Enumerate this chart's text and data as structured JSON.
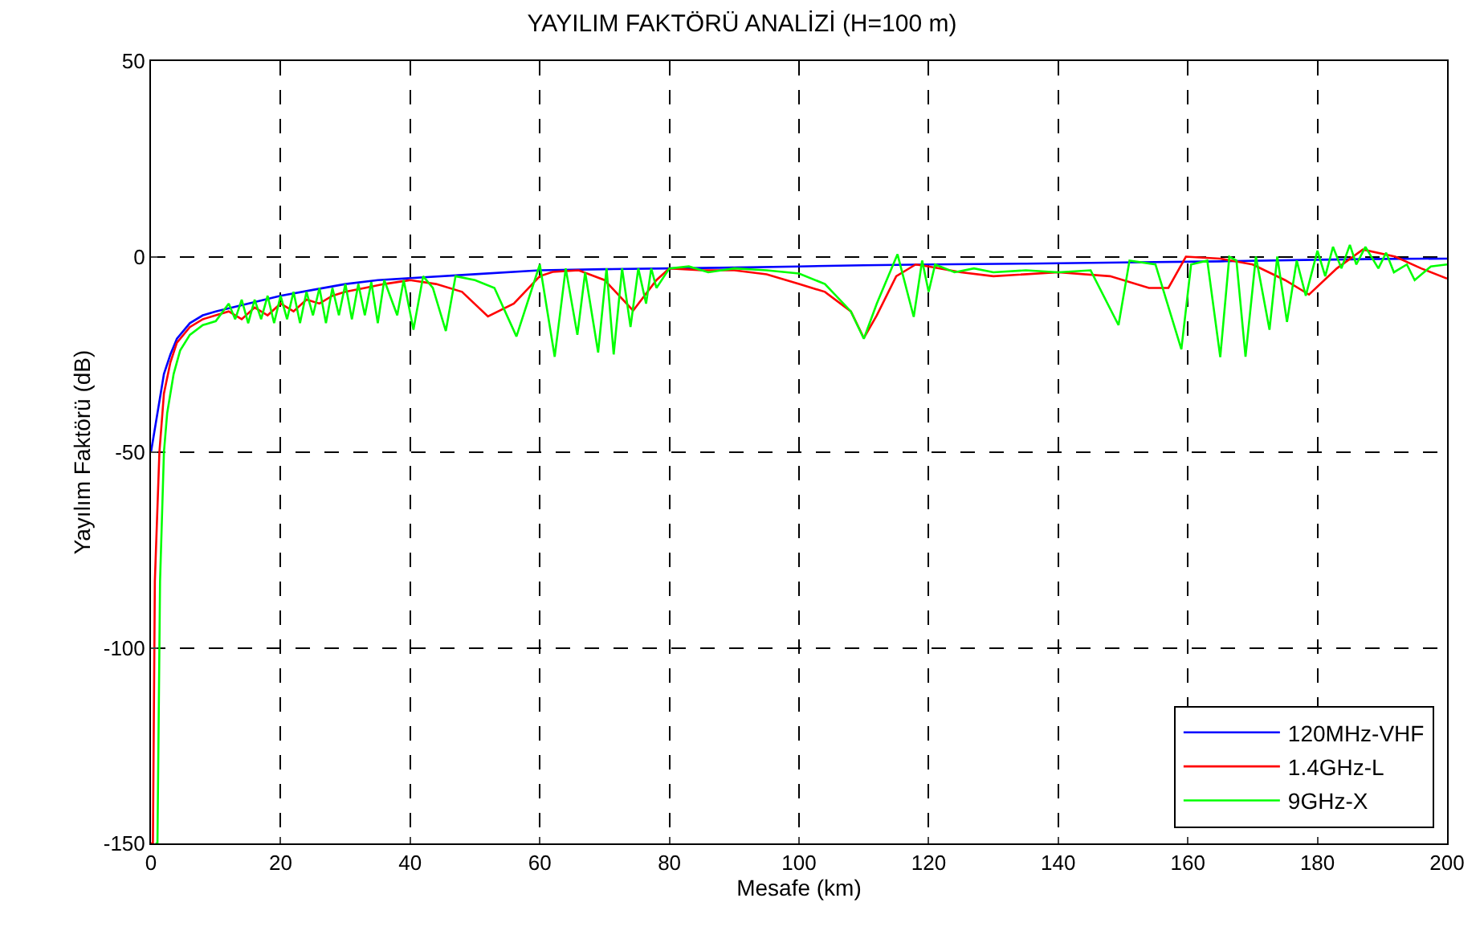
{
  "chart_data": {
    "type": "line",
    "title": "YAYILIM FAKTÖRÜ ANALİZİ (H=100 m)",
    "xlabel": "Mesafe (km)",
    "ylabel": "Yayılım Faktörü (dB)",
    "xlim": [
      0,
      200
    ],
    "ylim": [
      -150,
      50
    ],
    "xticks": [
      0,
      20,
      40,
      60,
      80,
      100,
      120,
      140,
      160,
      180,
      200
    ],
    "yticks": [
      -150,
      -100,
      -50,
      0,
      50
    ],
    "grid": true,
    "legend": "bottom right",
    "line_style": "solid",
    "marker": "none",
    "series": [
      {
        "name": "120MHz-VHF",
        "color": "#0000ff",
        "x": [
          0,
          1,
          2,
          3,
          4,
          6,
          8,
          10,
          15,
          20,
          25,
          30,
          35,
          40,
          50,
          60,
          70,
          80,
          90,
          100,
          110,
          120,
          135,
          150,
          165,
          180,
          190,
          200
        ],
        "values": [
          -50,
          -40,
          -30,
          -25,
          -21,
          -17,
          -15,
          -14,
          -12,
          -10,
          -8.5,
          -7,
          -6,
          -5.5,
          -4.5,
          -3.5,
          -3.2,
          -3,
          -2.8,
          -2.5,
          -2.2,
          -2,
          -1.8,
          -1.5,
          -1.2,
          -0.8,
          -0.6,
          -0.5
        ]
      },
      {
        "name": "1.4GHz-L",
        "color": "#ff0000",
        "x": [
          0,
          0.3,
          0.6,
          1.3,
          2,
          3,
          4,
          6,
          8,
          10,
          12,
          14,
          16,
          18,
          20,
          22,
          24,
          26,
          28,
          30,
          33,
          36,
          40,
          44,
          48,
          52,
          56,
          60,
          62,
          66,
          70,
          74.4,
          78,
          80,
          85,
          90,
          95,
          100,
          104,
          108,
          110,
          112,
          115,
          118,
          120,
          125,
          130,
          140,
          148,
          154,
          157,
          159.7,
          165,
          170,
          175,
          178.7,
          183,
          187,
          192,
          196,
          200
        ],
        "values": [
          -150,
          -150,
          -83,
          -50,
          -35,
          -27,
          -22,
          -18,
          -16,
          -15,
          -14,
          -16,
          -13,
          -15,
          -12,
          -14,
          -11,
          -12,
          -10,
          -9,
          -8,
          -7,
          -6,
          -7,
          -9,
          -15.3,
          -12,
          -5,
          -3.9,
          -3.5,
          -6,
          -13.8,
          -6,
          -3,
          -3.5,
          -3.5,
          -4.5,
          -7,
          -9,
          -14,
          -20.8,
          -15,
          -5,
          -2,
          -2.5,
          -4,
          -5,
          -4,
          -5,
          -8,
          -8,
          0,
          -0.5,
          -2,
          -6,
          -9.7,
          -3,
          1.8,
          0,
          -3,
          -5.6
        ]
      },
      {
        "name": "9GHz-X",
        "color": "#00ff00",
        "x": [
          0.7,
          1.0,
          1.4,
          2,
          2.5,
          3.5,
          4.5,
          6,
          8,
          10,
          12,
          13,
          14,
          15,
          16,
          17,
          18,
          19,
          20,
          21,
          22,
          23,
          24,
          25,
          26,
          27,
          28,
          29,
          30,
          31,
          32,
          33,
          34,
          35,
          36,
          38,
          39,
          40.5,
          42,
          43.5,
          45.5,
          47,
          50,
          53,
          56.4,
          60,
          62.3,
          64,
          65.8,
          67,
          69,
          70.3,
          71.4,
          72.7,
          74,
          75.2,
          76.4,
          77.2,
          78,
          80,
          83,
          86,
          90,
          95,
          100,
          104,
          108,
          110,
          112,
          115.2,
          117.7,
          119,
          120,
          121,
          124,
          127,
          130,
          135,
          140,
          145,
          149.3,
          151,
          155,
          159,
          160.5,
          163,
          165,
          166.4,
          167.5,
          168.9,
          170.5,
          172.6,
          173.8,
          175.3,
          176.8,
          178.2,
          180,
          181.2,
          182.4,
          183.7,
          185,
          186,
          187.4,
          189.4,
          190.6,
          191.8,
          193.8,
          195,
          197.5,
          200
        ],
        "values": [
          -150,
          -150,
          -83,
          -50,
          -40,
          -30,
          -24,
          -20,
          -17.5,
          -16.5,
          -12,
          -16,
          -11,
          -17,
          -11,
          -16,
          -10,
          -17,
          -10,
          -16,
          -9,
          -17,
          -9,
          -15,
          -8,
          -17,
          -8,
          -15,
          -7,
          -16,
          -7,
          -15,
          -6.5,
          -17,
          -6,
          -15,
          -6,
          -18.7,
          -5,
          -8,
          -19,
          -5,
          -6,
          -8,
          -20.4,
          -2,
          -25.6,
          -3,
          -20,
          -4,
          -24.5,
          -3,
          -25,
          -3,
          -18,
          -3,
          -12,
          -3,
          -8,
          -3,
          -2.5,
          -4,
          -3,
          -3.5,
          -4.3,
          -7,
          -14,
          -21,
          -12,
          0.6,
          -15.4,
          -1,
          -9,
          -2,
          -4,
          -3,
          -4,
          -3.5,
          -4,
          -3.5,
          -17.5,
          -1,
          -2,
          -23.7,
          -2,
          -1,
          -25.7,
          0,
          -1,
          -25.6,
          0,
          -18.7,
          0,
          -16.7,
          -1,
          -10,
          1.5,
          -5,
          2.5,
          -3,
          3,
          -2,
          2.5,
          -3,
          1,
          -4,
          -2,
          -6,
          -2.5,
          -2
        ]
      }
    ]
  }
}
